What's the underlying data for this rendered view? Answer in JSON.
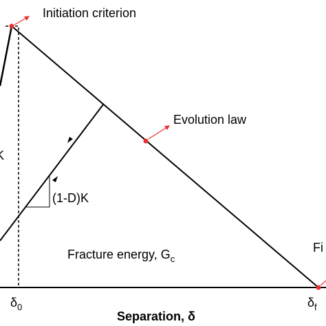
{
  "labels": {
    "initiation": "Initiation criterion",
    "evolution": "Evolution law",
    "unloading_stiffness": "(1-D)K",
    "stiffness": "K",
    "fracture_energy": {
      "main": "Fracture energy, G",
      "sub": "c"
    },
    "failure": "Fi",
    "delta_0": {
      "main": "δ",
      "sub": "0"
    },
    "delta_f": {
      "main": "δ",
      "sub": "f"
    },
    "x_axis": "Separation, δ"
  }
}
